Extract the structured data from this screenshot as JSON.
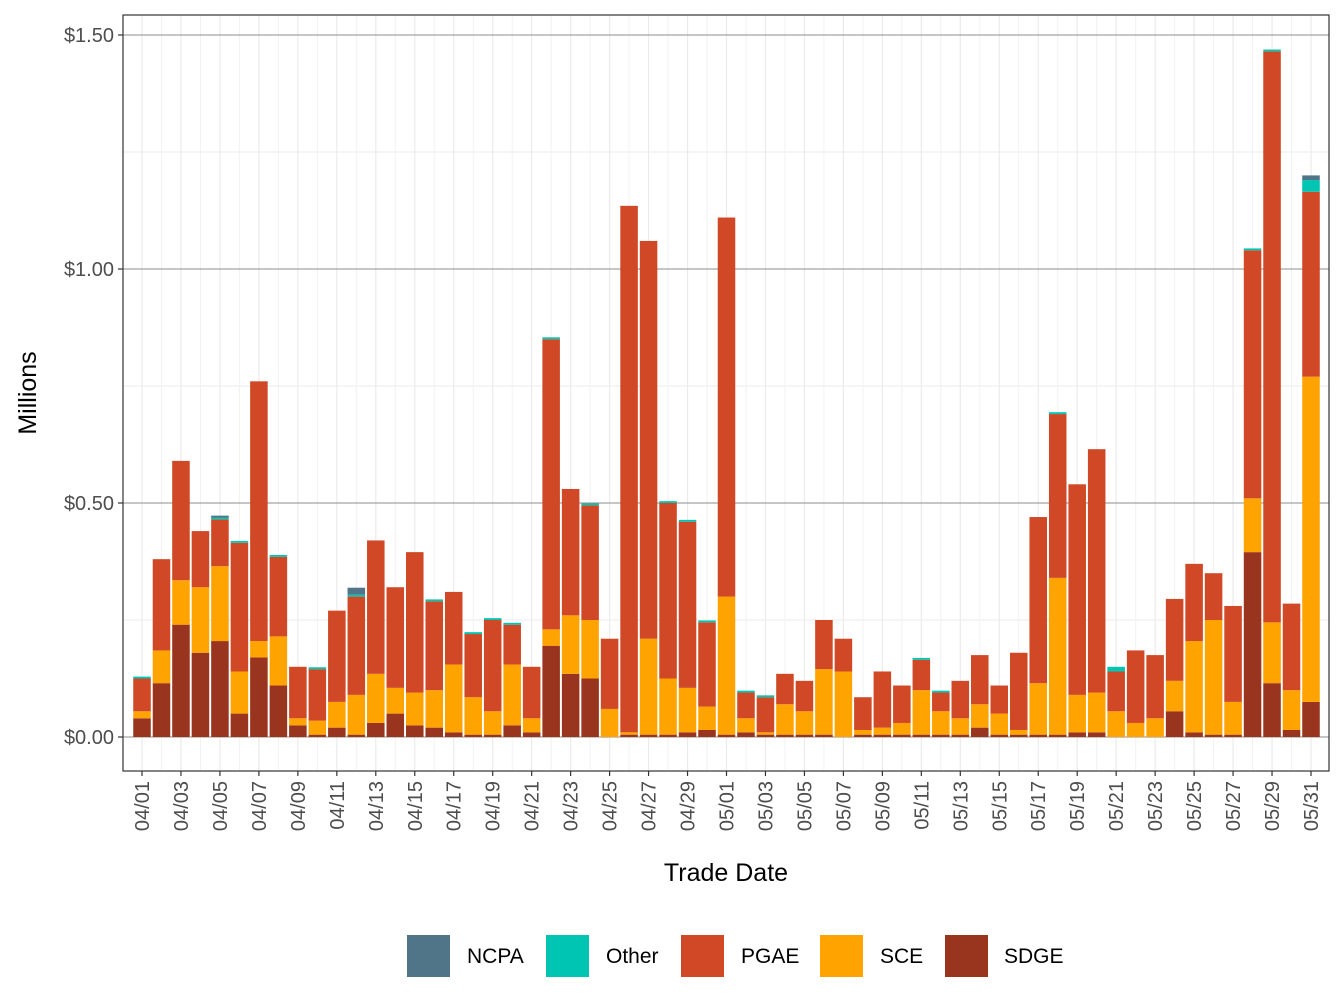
{
  "chart_data": {
    "type": "bar",
    "stacked": true,
    "xlabel": "Trade Date",
    "ylabel": "Millions",
    "ylim": [
      -0.07,
      1.5
    ],
    "yticks": [
      0,
      0.5,
      1.0,
      1.5
    ],
    "ytick_labels": [
      "$0.00",
      "$0.50",
      "$1.00",
      "$1.50"
    ],
    "legend_position": "bottom",
    "grid": true,
    "categories": [
      "04/01",
      "04/02",
      "04/03",
      "04/04",
      "04/05",
      "04/06",
      "04/07",
      "04/08",
      "04/09",
      "04/10",
      "04/11",
      "04/12",
      "04/13",
      "04/14",
      "04/15",
      "04/16",
      "04/17",
      "04/18",
      "04/19",
      "04/20",
      "04/21",
      "04/22",
      "04/23",
      "04/24",
      "04/25",
      "04/26",
      "04/27",
      "04/28",
      "04/29",
      "04/30",
      "05/01",
      "05/02",
      "05/03",
      "05/04",
      "05/05",
      "05/06",
      "05/07",
      "05/08",
      "05/09",
      "05/10",
      "05/11",
      "05/12",
      "05/13",
      "05/14",
      "05/15",
      "05/16",
      "05/17",
      "05/18",
      "05/19",
      "05/20",
      "05/21",
      "05/22",
      "05/23",
      "05/24",
      "05/25",
      "05/26",
      "05/27",
      "05/28",
      "05/29",
      "05/30",
      "05/31"
    ],
    "xtick_labels": [
      "04/01",
      "04/03",
      "04/05",
      "04/07",
      "04/09",
      "04/11",
      "04/13",
      "04/15",
      "04/17",
      "04/19",
      "04/21",
      "04/23",
      "04/25",
      "04/27",
      "04/29",
      "05/01",
      "05/03",
      "05/05",
      "05/07",
      "05/09",
      "05/11",
      "05/13",
      "05/15",
      "05/17",
      "05/19",
      "05/21",
      "05/23",
      "05/25",
      "05/27",
      "05/29",
      "05/31"
    ],
    "series": [
      {
        "name": "SDGE",
        "color": "#99351f",
        "values": [
          0.04,
          0.115,
          0.24,
          0.18,
          0.205,
          0.05,
          0.17,
          0.11,
          0.025,
          0.005,
          0.02,
          0.005,
          0.03,
          0.05,
          0.025,
          0.02,
          0.01,
          0.005,
          0.005,
          0.025,
          0.01,
          0.195,
          0.135,
          0.125,
          0,
          0.005,
          0.005,
          0.005,
          0.01,
          0.015,
          0.005,
          0.01,
          0.005,
          0.005,
          0.005,
          0.005,
          0,
          0.005,
          0.005,
          0.005,
          0.005,
          0.005,
          0.005,
          0.02,
          0.005,
          0.005,
          0.005,
          0.005,
          0.01,
          0.01,
          0,
          0,
          0,
          0.055,
          0.01,
          0.005,
          0.005,
          0.395,
          0.115,
          0.015,
          0.075
        ]
      },
      {
        "name": "SCE",
        "color": "#ffa300",
        "values": [
          0.015,
          0.07,
          0.095,
          0.14,
          0.16,
          0.09,
          0.035,
          0.105,
          0.015,
          0.03,
          0.055,
          0.085,
          0.105,
          0.055,
          0.07,
          0.08,
          0.145,
          0.08,
          0.05,
          0.13,
          0.03,
          0.035,
          0.125,
          0.125,
          0.06,
          0.005,
          0.205,
          0.12,
          0.095,
          0.05,
          0.295,
          0.03,
          0.005,
          0.065,
          0.05,
          0.14,
          0.14,
          0.01,
          0.015,
          0.025,
          0.095,
          0.05,
          0.035,
          0.05,
          0.045,
          0.01,
          0.11,
          0.335,
          0.08,
          0.085,
          0.055,
          0.03,
          0.04,
          0.065,
          0.195,
          0.245,
          0.07,
          0.115,
          0.13,
          0.085,
          0.695
        ]
      },
      {
        "name": "PGAE",
        "color": "#d04825",
        "values": [
          0.07,
          0.195,
          0.255,
          0.12,
          0.1,
          0.275,
          0.555,
          0.17,
          0.11,
          0.11,
          0.195,
          0.21,
          0.285,
          0.215,
          0.3,
          0.19,
          0.155,
          0.135,
          0.195,
          0.085,
          0.11,
          0.62,
          0.27,
          0.245,
          0.15,
          1.125,
          0.85,
          0.375,
          0.355,
          0.18,
          0.81,
          0.055,
          0.075,
          0.065,
          0.065,
          0.105,
          0.07,
          0.07,
          0.12,
          0.08,
          0.065,
          0.04,
          0.08,
          0.105,
          0.06,
          0.165,
          0.355,
          0.35,
          0.45,
          0.52,
          0.085,
          0.155,
          0.135,
          0.175,
          0.165,
          0.1,
          0.205,
          0.53,
          1.22,
          0.185,
          0.395
        ]
      },
      {
        "name": "Other",
        "color": "#00c5b2",
        "values": [
          0.004,
          0,
          0,
          0,
          0.004,
          0.004,
          0,
          0.004,
          0,
          0.004,
          0,
          0.004,
          0,
          0,
          0,
          0.004,
          0,
          0.004,
          0.004,
          0.004,
          0,
          0.004,
          0,
          0.004,
          0,
          0,
          0,
          0.004,
          0.004,
          0.004,
          0,
          0.004,
          0.004,
          0,
          0,
          0,
          0,
          0,
          0,
          0,
          0.004,
          0.004,
          0,
          0,
          0,
          0,
          0,
          0.004,
          0,
          0,
          0.01,
          0,
          0,
          0,
          0,
          0,
          0,
          0.004,
          0.004,
          0,
          0.025
        ]
      },
      {
        "name": "NCPA",
        "color": "#507588",
        "values": [
          0,
          0,
          0,
          0,
          0.004,
          0,
          0,
          0,
          0,
          0,
          0,
          0.015,
          0,
          0,
          0,
          0,
          0,
          0,
          0,
          0,
          0,
          0,
          0,
          0,
          0,
          0,
          0,
          0,
          0,
          0,
          0,
          0,
          0,
          0,
          0,
          0,
          0,
          0,
          0,
          0,
          0,
          0,
          0,
          0,
          0,
          0,
          0,
          0,
          0,
          0,
          0,
          0,
          0,
          0,
          0,
          0,
          0,
          0,
          0,
          0,
          0.01
        ]
      }
    ],
    "legend_order": [
      "NCPA",
      "Other",
      "PGAE",
      "SCE",
      "SDGE"
    ]
  }
}
